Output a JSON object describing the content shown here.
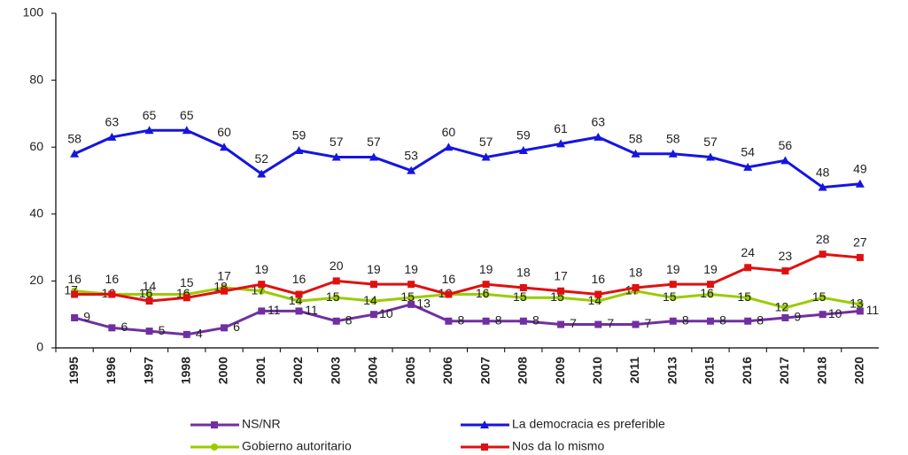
{
  "chart_data": {
    "type": "line",
    "categories": [
      "1995",
      "1996",
      "1997",
      "1998",
      "2000",
      "2001",
      "2002",
      "2003",
      "2004",
      "2005",
      "2006",
      "2007",
      "2008",
      "2009",
      "2010",
      "2011",
      "2013",
      "2015",
      "2016",
      "2017",
      "2018",
      "2020"
    ],
    "series": [
      {
        "name": "NS/NR",
        "color": "#7030a0",
        "marker": "square",
        "values": [
          9,
          6,
          5,
          4,
          6,
          11,
          11,
          8,
          10,
          13,
          8,
          8,
          8,
          7,
          7,
          7,
          8,
          8,
          8,
          9,
          10,
          11
        ]
      },
      {
        "name": "La democracia es preferible",
        "color": "#1515e0",
        "marker": "triangle",
        "values": [
          58,
          63,
          65,
          65,
          60,
          52,
          59,
          57,
          57,
          53,
          60,
          57,
          59,
          61,
          63,
          58,
          58,
          57,
          54,
          56,
          48,
          49
        ]
      },
      {
        "name": "Gobierno autoritario",
        "color": "#99cc00",
        "marker": "circle",
        "values": [
          17,
          16,
          16,
          16,
          18,
          17,
          14,
          15,
          14,
          15,
          16,
          16,
          15,
          15,
          14,
          17,
          15,
          16,
          15,
          12,
          15,
          13
        ]
      },
      {
        "name": "Nos da lo mismo",
        "color": "#e01010",
        "marker": "square",
        "values": [
          16,
          16,
          14,
          15,
          17,
          19,
          16,
          20,
          19,
          19,
          16,
          19,
          18,
          17,
          16,
          18,
          19,
          19,
          24,
          23,
          28,
          27
        ]
      }
    ],
    "ylim": [
      0,
      100
    ],
    "yticks": [
      0,
      20,
      40,
      60,
      80,
      100
    ],
    "grid": false
  }
}
